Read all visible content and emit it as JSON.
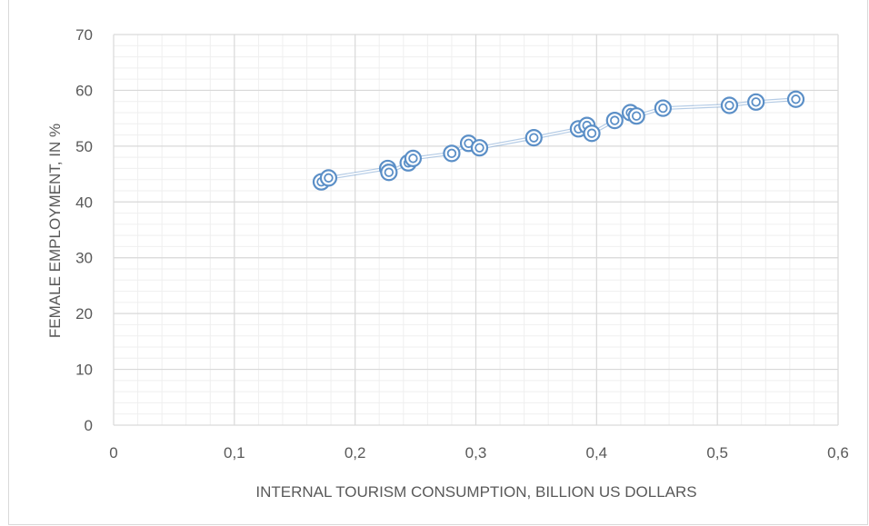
{
  "chart_data": {
    "type": "scatter",
    "title": "",
    "xlabel": "INTERNAL TOURISM CONSUMPTION, BILLION US DOLLARS",
    "ylabel": "FEMALE EMPLOYMENT, IN %",
    "xlim": [
      0,
      0.6
    ],
    "ylim": [
      0,
      70
    ],
    "x_ticks": [
      "0",
      "0,1",
      "0,2",
      "0,3",
      "0,4",
      "0,5",
      "0,6"
    ],
    "y_ticks": [
      "0",
      "10",
      "20",
      "30",
      "40",
      "50",
      "60",
      "70"
    ],
    "grid": true,
    "minor_grid": true,
    "marker": "double-circle",
    "color": "#5b8fc7",
    "series": [
      {
        "points": [
          [
            0.172,
            43.6
          ],
          [
            0.178,
            44.3
          ],
          [
            0.227,
            46.0
          ],
          [
            0.228,
            45.3
          ],
          [
            0.244,
            47.0
          ],
          [
            0.248,
            47.8
          ],
          [
            0.28,
            48.7
          ],
          [
            0.294,
            50.5
          ],
          [
            0.303,
            49.7
          ],
          [
            0.348,
            51.5
          ],
          [
            0.385,
            53.1
          ],
          [
            0.392,
            53.7
          ],
          [
            0.396,
            52.3
          ],
          [
            0.415,
            54.6
          ],
          [
            0.428,
            56.0
          ],
          [
            0.433,
            55.4
          ],
          [
            0.455,
            56.8
          ],
          [
            0.51,
            57.3
          ],
          [
            0.532,
            57.9
          ],
          [
            0.565,
            58.4
          ]
        ]
      }
    ]
  }
}
